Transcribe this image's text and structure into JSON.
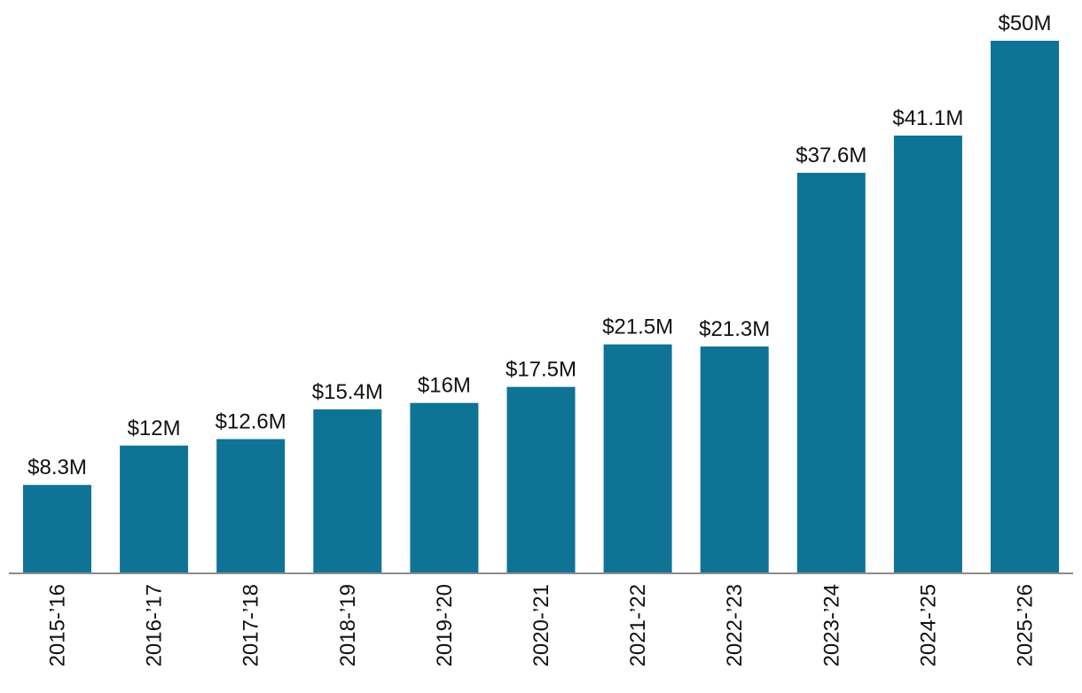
{
  "chart_data": {
    "type": "bar",
    "title": "",
    "xlabel": "",
    "ylabel": "",
    "ylim": [
      0,
      50
    ],
    "grid": false,
    "categories": [
      "2015-’16",
      "2016-’17",
      "2017-’18",
      "2018-’19",
      "2019-’20",
      "2020-’21",
      "2021-’22",
      "2022-’23",
      "2023-’24",
      "2024-’25",
      "2025-’26"
    ],
    "values": [
      8.3,
      12,
      12.6,
      15.4,
      16,
      17.5,
      21.5,
      21.3,
      37.6,
      41.1,
      50
    ],
    "value_labels": [
      "$8.3M",
      "$12M",
      "$12.6M",
      "$15.4M",
      "$16M",
      "$17.5M",
      "$21.5M",
      "$21.3M",
      "$37.6M",
      "$41.1M",
      "$50M"
    ],
    "colors": {
      "bar": "#0f7396",
      "axis": "#8c8c8c",
      "text": "#111111"
    }
  }
}
